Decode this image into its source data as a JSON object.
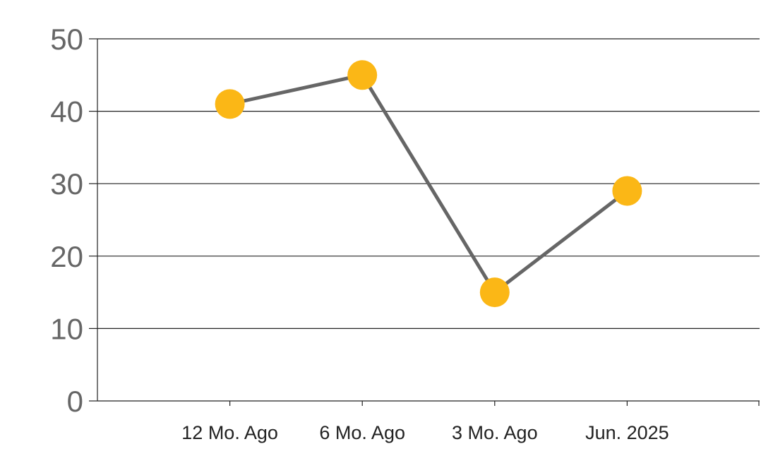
{
  "chart_data": {
    "type": "line",
    "title": "",
    "xlabel": "",
    "ylabel": "",
    "categories": [
      "12 Mo. Ago",
      "6 Mo. Ago",
      "3 Mo. Ago",
      "Jun. 2025"
    ],
    "series": [
      {
        "values": [
          41,
          45,
          15,
          29
        ]
      }
    ],
    "ylim": [
      0,
      50
    ],
    "y_ticks": [
      "0",
      "10",
      "20",
      "30",
      "40",
      "50"
    ],
    "grid": "horizontal",
    "legend": "none",
    "colors": {
      "line": "#666666",
      "marker": "#FBB716",
      "grid": "#222222",
      "tick_text": "#666666",
      "category_text": "#222222"
    }
  }
}
